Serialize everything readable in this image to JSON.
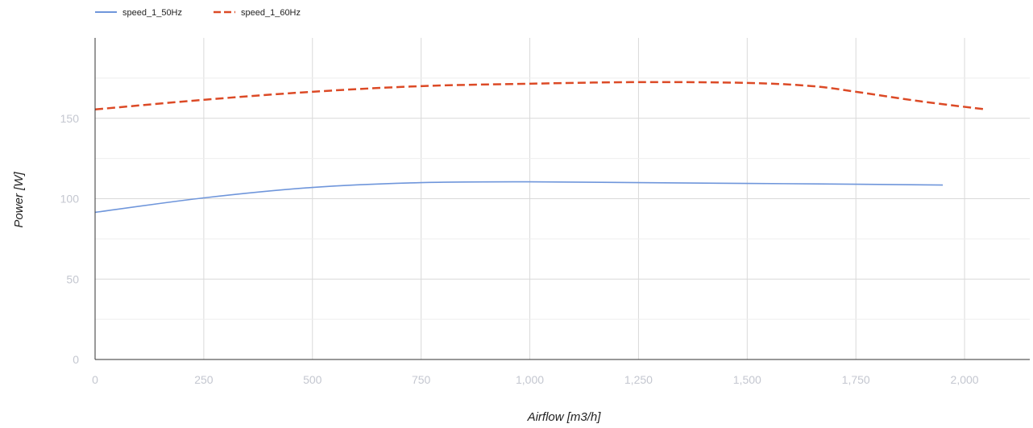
{
  "chart_data": {
    "type": "line",
    "xlabel": "Airflow [m3/h]",
    "ylabel": "Power [W]",
    "xlim": [
      0,
      2150
    ],
    "ylim": [
      0,
      200
    ],
    "x_ticks": [
      {
        "value": 0,
        "label": "0"
      },
      {
        "value": 250,
        "label": "250"
      },
      {
        "value": 500,
        "label": "500"
      },
      {
        "value": 750,
        "label": "750"
      },
      {
        "value": 1000,
        "label": "1,000"
      },
      {
        "value": 1250,
        "label": "1,250"
      },
      {
        "value": 1500,
        "label": "1,500"
      },
      {
        "value": 1750,
        "label": "1,750"
      },
      {
        "value": 2000,
        "label": "2,000"
      }
    ],
    "y_ticks": [
      {
        "value": 0,
        "label": "0"
      },
      {
        "value": 50,
        "label": "50"
      },
      {
        "value": 100,
        "label": "100"
      },
      {
        "value": 150,
        "label": "150"
      }
    ],
    "y_minor_gridlines": [
      25,
      75,
      125,
      175
    ],
    "grid": true,
    "legend_position": "top-left",
    "series": [
      {
        "name": "speed_1_50Hz",
        "color": "#6f96db",
        "dash": "solid",
        "points": [
          [
            0,
            91.5
          ],
          [
            250,
            100.5
          ],
          [
            500,
            107
          ],
          [
            750,
            110
          ],
          [
            1000,
            110.5
          ],
          [
            1250,
            110
          ],
          [
            1500,
            109.5
          ],
          [
            1750,
            109
          ],
          [
            1950,
            108.5
          ]
        ]
      },
      {
        "name": "speed_1_60Hz",
        "color": "#dc4a26",
        "dash": "dashed",
        "points": [
          [
            0,
            155.5
          ],
          [
            250,
            161.5
          ],
          [
            500,
            166.5
          ],
          [
            750,
            170
          ],
          [
            1000,
            171.5
          ],
          [
            1250,
            172.5
          ],
          [
            1500,
            172
          ],
          [
            1650,
            170
          ],
          [
            1750,
            166.5
          ],
          [
            1900,
            160.5
          ],
          [
            2050,
            155.5
          ]
        ]
      }
    ]
  }
}
